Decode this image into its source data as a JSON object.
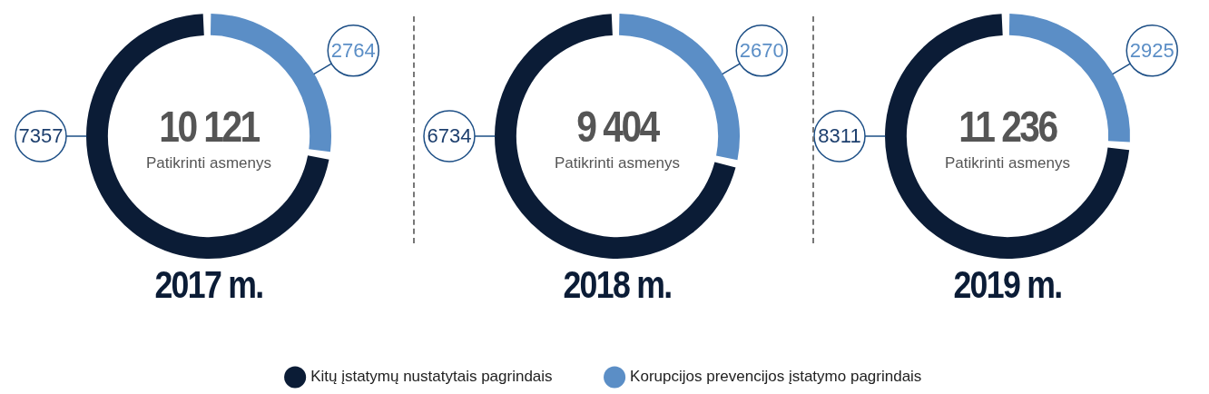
{
  "chart_data": [
    {
      "type": "donut",
      "title": "2017 m.",
      "categories": [
        null,
        null
      ],
      "values": [
        7357,
        2764
      ],
      "colors": [
        "#0b1c36",
        "#5b8ec6"
      ],
      "data_labels": true,
      "annotations": [
        "10 121",
        "Patikrinti asmenys"
      ]
    },
    {
      "type": "donut",
      "title": "2018 m.",
      "categories": [
        "Kitų įstatymų nustatytais pagrindais",
        "Korupcijos prevencijos įstatymo pagrindais"
      ],
      "values": [
        6734,
        2670
      ],
      "colors": [
        "#0b1c36",
        "#5b8ec6"
      ],
      "data_labels": true,
      "annotations": [
        "9 404",
        "Patikrinti asmenys"
      ],
      "legend": "bottom"
    },
    {
      "type": "donut",
      "title": "2019 m.",
      "categories": [
        null,
        null
      ],
      "values": [
        8311,
        2925
      ],
      "colors": [
        "#0b1c36",
        "#5b8ec6"
      ],
      "data_labels": true,
      "annotations": [
        "11 236",
        "Patikrinti asmenys"
      ]
    }
  ]
}
